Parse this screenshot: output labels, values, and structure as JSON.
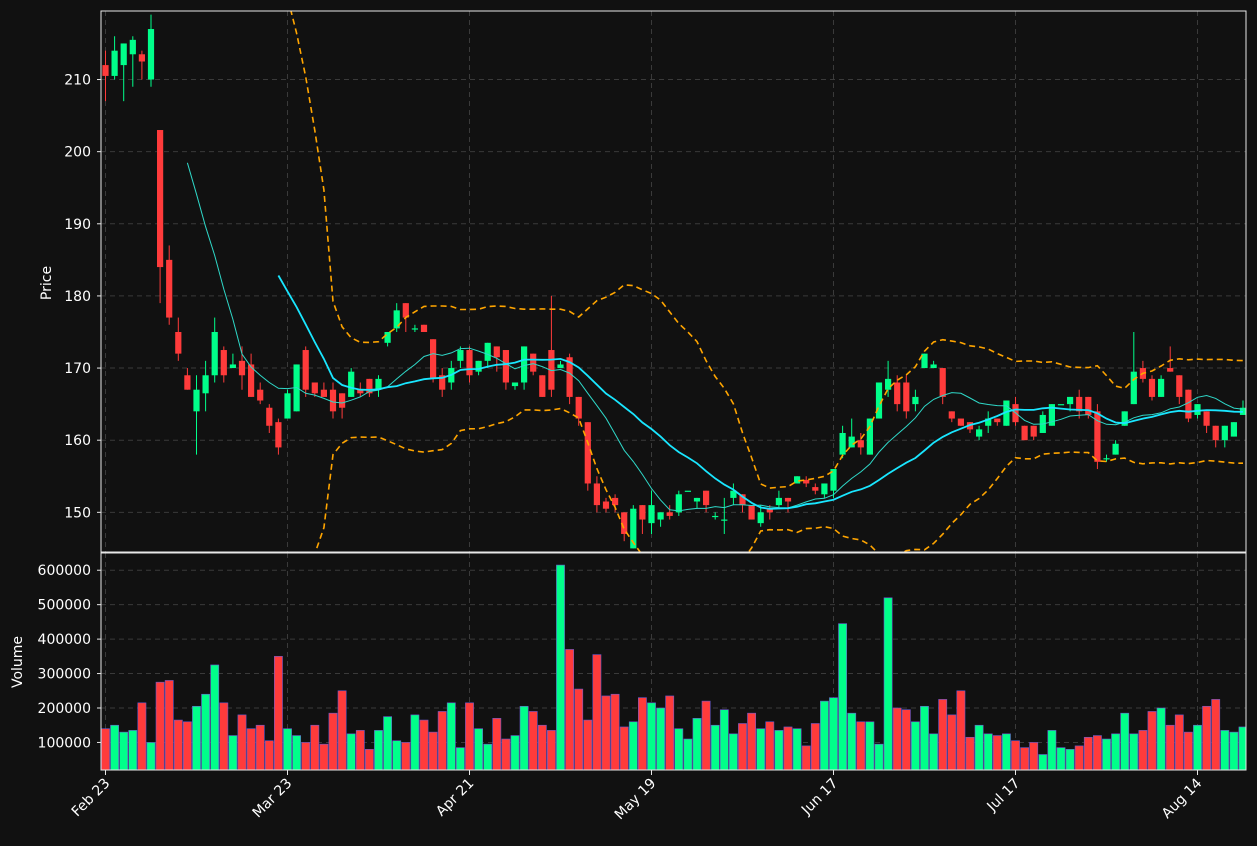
{
  "chart_data": {
    "type": "candlestick",
    "title": "",
    "ylabel": "Price",
    "volume_label": "Volume",
    "price_ylim": [
      144.5,
      219.5
    ],
    "price_ticks": [
      150,
      160,
      170,
      180,
      190,
      200,
      210
    ],
    "volume_ylim": [
      20000,
      650000
    ],
    "volume_ticks": [
      100000,
      200000,
      300000,
      400000,
      500000,
      600000
    ],
    "x_ticks": [
      {
        "label": "Feb 23",
        "index": 0
      },
      {
        "label": "Mar 23",
        "index": 20
      },
      {
        "label": "Apr 21",
        "index": 40
      },
      {
        "label": "May 19",
        "index": 60
      },
      {
        "label": "Jun 17",
        "index": 80
      },
      {
        "label": "Jul 17",
        "index": 100
      },
      {
        "label": "Aug 14",
        "index": 120
      }
    ],
    "grid": true,
    "colors": {
      "up": "#00ff8a",
      "down": "#ff3b3b",
      "ma_short": "#2fd8c8",
      "ma_long": "#19e6ff",
      "bands": "#ffa500",
      "background": "#111111",
      "grid": "#3a3a3a"
    },
    "candles": [
      [
        212,
        210.5,
        214,
        207
      ],
      [
        210.5,
        214,
        216,
        210
      ],
      [
        212,
        215,
        215,
        207
      ],
      [
        213.5,
        215.5,
        216,
        209
      ],
      [
        213.5,
        212.5,
        214,
        210
      ],
      [
        210,
        217,
        219,
        209
      ],
      [
        203,
        184,
        203,
        179
      ],
      [
        185,
        177,
        187,
        176
      ],
      [
        175,
        172,
        177,
        171
      ],
      [
        169,
        167,
        170,
        167
      ],
      [
        164,
        167,
        169,
        158
      ],
      [
        166.5,
        169,
        171,
        164
      ],
      [
        169,
        175,
        177,
        168
      ],
      [
        172.5,
        169,
        173,
        168
      ],
      [
        170,
        170.5,
        172,
        170
      ],
      [
        171,
        169,
        173,
        167
      ],
      [
        170.5,
        166,
        172,
        166
      ],
      [
        167,
        165.5,
        168,
        165
      ],
      [
        164.5,
        162,
        165,
        161
      ],
      [
        162.5,
        159,
        163,
        158
      ],
      [
        163,
        166.5,
        167,
        163
      ],
      [
        164,
        170.5,
        170.5,
        164
      ],
      [
        172.5,
        167,
        173,
        166
      ],
      [
        168,
        166.5,
        168,
        166
      ],
      [
        167,
        166,
        168,
        166
      ],
      [
        167,
        164,
        168,
        163
      ],
      [
        166.5,
        164.5,
        166.5,
        163
      ],
      [
        166,
        169.5,
        170,
        166
      ],
      [
        167,
        166.5,
        168,
        166
      ],
      [
        168.5,
        166.5,
        168.5,
        166
      ],
      [
        167,
        168.5,
        169,
        166
      ],
      [
        173.5,
        175,
        175,
        173
      ],
      [
        175.5,
        178,
        179,
        175
      ],
      [
        179,
        177,
        179,
        175
      ],
      [
        175.5,
        175.5,
        176,
        175
      ],
      [
        176,
        175,
        176,
        175
      ],
      [
        174,
        168.5,
        174,
        168
      ],
      [
        169,
        167,
        170,
        166
      ],
      [
        168,
        170,
        171,
        167
      ],
      [
        171,
        172.5,
        173,
        170
      ],
      [
        172.5,
        169,
        173,
        168
      ],
      [
        169.5,
        171,
        171,
        169
      ],
      [
        171,
        173.5,
        173.5,
        170
      ],
      [
        173,
        171.5,
        173,
        169.5
      ],
      [
        172.5,
        168,
        172.5,
        167
      ],
      [
        167.5,
        168,
        168,
        167
      ],
      [
        168,
        173,
        173,
        167
      ],
      [
        172,
        169.5,
        172,
        169
      ],
      [
        169,
        166,
        169,
        166
      ],
      [
        172.5,
        167,
        180,
        166
      ],
      [
        170,
        170.5,
        171,
        170
      ],
      [
        171.5,
        166,
        172,
        165
      ],
      [
        166,
        163,
        166,
        162
      ],
      [
        162.5,
        154,
        162.5,
        153
      ],
      [
        154,
        151,
        155,
        150
      ],
      [
        151.5,
        150.5,
        152,
        150
      ],
      [
        152,
        151,
        152.5,
        150
      ],
      [
        150,
        147,
        150,
        146
      ],
      [
        145,
        150.5,
        151,
        145
      ],
      [
        151,
        149,
        151,
        147
      ],
      [
        148.5,
        151,
        153,
        147
      ],
      [
        149,
        150,
        150,
        148
      ],
      [
        150,
        149.5,
        151,
        149
      ],
      [
        150,
        152.5,
        153,
        149.5
      ],
      [
        153,
        153,
        153,
        153
      ],
      [
        151.5,
        152,
        152,
        150.5
      ],
      [
        153,
        151,
        153,
        150
      ],
      [
        149.5,
        149.5,
        150,
        149
      ],
      [
        149,
        149,
        152,
        147
      ],
      [
        152,
        153,
        154,
        151
      ],
      [
        152.5,
        151,
        152.5,
        150
      ],
      [
        151,
        149,
        151,
        149
      ],
      [
        148.5,
        150,
        151,
        148
      ],
      [
        150.5,
        150,
        151,
        149
      ],
      [
        151,
        152,
        153,
        150.5
      ],
      [
        152,
        151.5,
        152,
        150
      ],
      [
        154,
        155,
        155,
        154
      ],
      [
        154.5,
        154,
        155,
        153.5
      ],
      [
        153.5,
        153,
        154,
        152.5
      ],
      [
        152.5,
        154,
        154,
        152
      ],
      [
        153,
        156,
        156,
        152
      ],
      [
        158,
        161,
        162,
        157.5
      ],
      [
        159,
        160.5,
        163,
        159
      ],
      [
        160,
        159,
        161,
        158
      ],
      [
        158,
        163,
        163,
        158
      ],
      [
        163,
        168,
        168,
        163
      ],
      [
        167,
        168.5,
        171,
        166
      ],
      [
        168,
        165,
        169,
        164
      ],
      [
        168,
        164,
        169,
        163
      ],
      [
        165,
        166,
        167,
        164
      ],
      [
        170,
        172,
        172,
        170
      ],
      [
        170,
        170.5,
        171,
        170
      ],
      [
        170,
        166,
        170,
        165
      ],
      [
        164,
        163,
        164,
        162.5
      ],
      [
        163,
        162,
        163,
        162
      ],
      [
        162.5,
        161.5,
        162.5,
        161
      ],
      [
        160.5,
        161.5,
        162,
        160
      ],
      [
        162,
        163,
        164,
        161
      ],
      [
        163,
        162.5,
        163,
        162
      ],
      [
        162,
        165.5,
        165.5,
        162
      ],
      [
        165,
        162.5,
        166,
        162
      ],
      [
        162,
        160,
        162,
        160
      ],
      [
        162,
        160.5,
        162,
        160
      ],
      [
        161,
        163.5,
        164,
        161
      ],
      [
        162,
        165,
        165,
        162
      ],
      [
        165,
        165,
        165,
        165
      ],
      [
        165,
        166,
        166,
        164
      ],
      [
        166,
        164,
        167,
        163
      ],
      [
        166,
        163.5,
        166,
        163
      ],
      [
        164,
        157,
        165,
        156
      ],
      [
        157.5,
        157.5,
        158,
        157
      ],
      [
        158,
        159.5,
        160,
        158
      ],
      [
        162,
        164,
        164,
        162
      ],
      [
        165,
        169.5,
        175,
        165
      ],
      [
        170,
        168.5,
        171,
        168
      ],
      [
        168.5,
        166,
        169,
        165.5
      ],
      [
        166,
        168.5,
        169,
        166
      ],
      [
        170,
        169.5,
        173,
        169.5
      ],
      [
        169,
        166,
        169,
        165
      ],
      [
        167,
        163,
        167,
        162.5
      ],
      [
        163.5,
        165,
        165,
        163
      ],
      [
        164,
        162,
        164,
        161
      ],
      [
        162,
        160,
        162,
        159
      ],
      [
        160,
        162,
        162,
        159
      ],
      [
        160.5,
        162.5,
        162.5,
        160.5
      ],
      [
        163.5,
        164.5,
        165.5,
        163.5
      ]
    ],
    "volumes": [
      140000,
      150000,
      130000,
      135000,
      215000,
      100000,
      275000,
      280000,
      165000,
      160000,
      205000,
      240000,
      325000,
      215000,
      120000,
      180000,
      140000,
      150000,
      105000,
      350000,
      140000,
      120000,
      100000,
      150000,
      95000,
      185000,
      250000,
      125000,
      135000,
      80000,
      135000,
      175000,
      105000,
      100000,
      180000,
      165000,
      130000,
      190000,
      215000,
      85000,
      215000,
      140000,
      95000,
      170000,
      110000,
      120000,
      205000,
      190000,
      150000,
      135000,
      615000,
      370000,
      255000,
      165000,
      355000,
      235000,
      240000,
      145000,
      160000,
      230000,
      215000,
      200000,
      235000,
      140000,
      110000,
      170000,
      220000,
      150000,
      195000,
      125000,
      155000,
      185000,
      140000,
      160000,
      135000,
      145000,
      140000,
      90000,
      155000,
      220000,
      230000,
      445000,
      185000,
      160000,
      160000,
      95000,
      520000,
      200000,
      195000,
      160000,
      205000,
      125000,
      225000,
      180000,
      250000,
      115000,
      150000,
      125000,
      120000,
      125000,
      105000,
      85000,
      100000,
      65000,
      135000,
      85000,
      80000,
      90000,
      115000,
      120000,
      110000,
      125000,
      185000,
      125000,
      135000,
      190000,
      200000,
      150000,
      180000,
      130000,
      150000,
      205000,
      225000,
      135000,
      130000,
      145000
    ]
  }
}
